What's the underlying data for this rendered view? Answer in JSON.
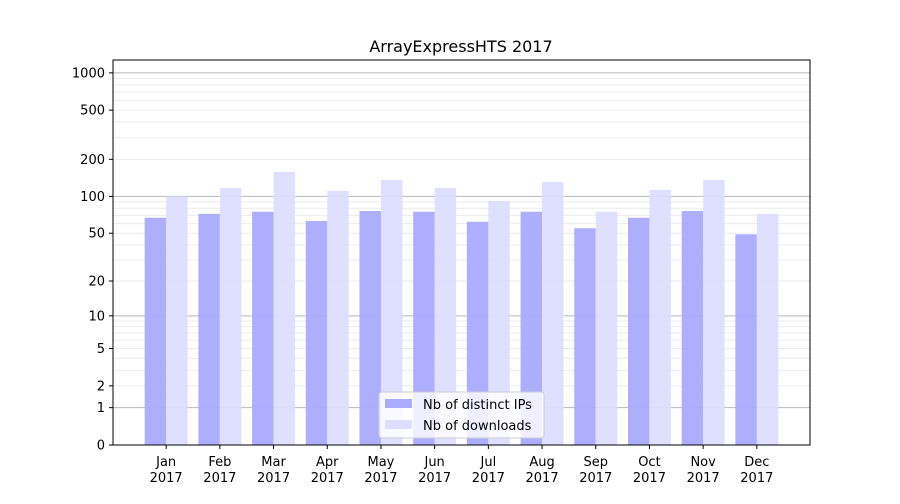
{
  "chart_data": {
    "type": "bar",
    "title": "ArrayExpressHTS 2017",
    "xlabel": "",
    "ylabel": "",
    "yscale": "log(1+y)",
    "ylim": [
      0,
      1270
    ],
    "yticks": [
      0,
      1,
      2,
      5,
      10,
      20,
      50,
      100,
      200,
      500,
      1000
    ],
    "grid": true,
    "legend_placement": "lower center",
    "categories": [
      "Jan\n2017",
      "Feb\n2017",
      "Mar\n2017",
      "Apr\n2017",
      "May\n2017",
      "Jun\n2017",
      "Jul\n2017",
      "Aug\n2017",
      "Sep\n2017",
      "Oct\n2017",
      "Nov\n2017",
      "Dec\n2017"
    ],
    "series": [
      {
        "name": "Nb of distinct IPs",
        "color": "#aaaaff",
        "values": [
          67,
          72,
          75,
          63,
          76,
          75,
          62,
          75,
          55,
          67,
          76,
          49
        ]
      },
      {
        "name": "Nb of downloads",
        "color": "#ddddff",
        "values": [
          100,
          117,
          158,
          111,
          136,
          117,
          92,
          131,
          75,
          113,
          136,
          72
        ]
      }
    ]
  }
}
